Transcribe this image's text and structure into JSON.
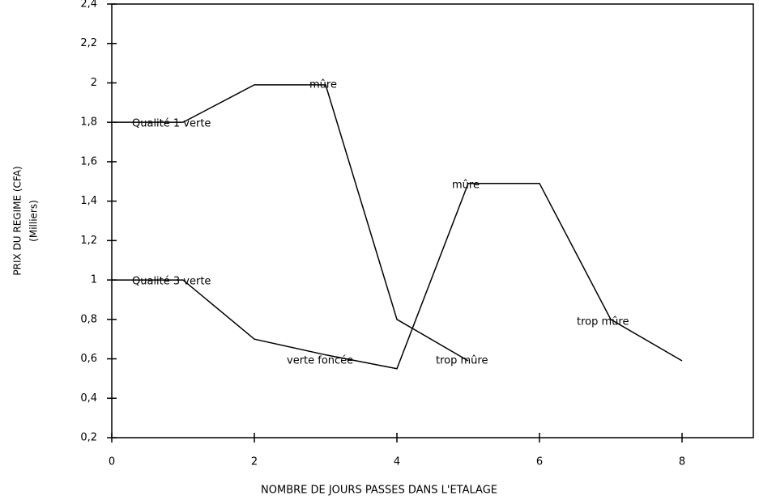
{
  "chart_data": {
    "type": "line",
    "ylabel": [
      "PRIX DU REGIME (CFA)",
      "(Milliers)"
    ],
    "xlabel": "NOMBRE DE JOURS PASSES DANS L'ETALAGE",
    "x": [
      0,
      1,
      2,
      3,
      4,
      5,
      6,
      7,
      8
    ],
    "series": [
      {
        "name": "Qualité 1 verte",
        "color": "#000000",
        "values": [
          1.8,
          1.8,
          1.99,
          1.99,
          0.8,
          0.59,
          null,
          null,
          null
        ]
      },
      {
        "name": "Qualité 3 verte",
        "color": "#000000",
        "values": [
          1.0,
          1.0,
          0.7,
          0.62,
          0.55,
          1.49,
          1.49,
          0.8,
          0.59
        ]
      }
    ],
    "annotations": [
      "mûre",
      "verte foncée",
      "trop mûre",
      "mûre",
      "trop mûre"
    ],
    "xlim": [
      0,
      9
    ],
    "xticks": [
      0,
      2,
      4,
      6,
      8
    ],
    "ylim": [
      0.2,
      2.4
    ],
    "yticks": [
      {
        "value": 0.2,
        "label": "0,2"
      },
      {
        "value": 0.4,
        "label": "0,4"
      },
      {
        "value": 0.6,
        "label": "0,6"
      },
      {
        "value": 0.8,
        "label": "0,8"
      },
      1,
      {
        "value": 1.2,
        "label": "1,2"
      },
      {
        "value": 1.4,
        "label": "1,4"
      },
      {
        "value": 1.6,
        "label": "1,6"
      },
      {
        "value": 1.8,
        "label": "1,8"
      },
      2,
      {
        "value": 2.2,
        "label": "2,2"
      },
      {
        "value": 2.4,
        "label": "2,4"
      }
    ],
    "grid": false
  }
}
